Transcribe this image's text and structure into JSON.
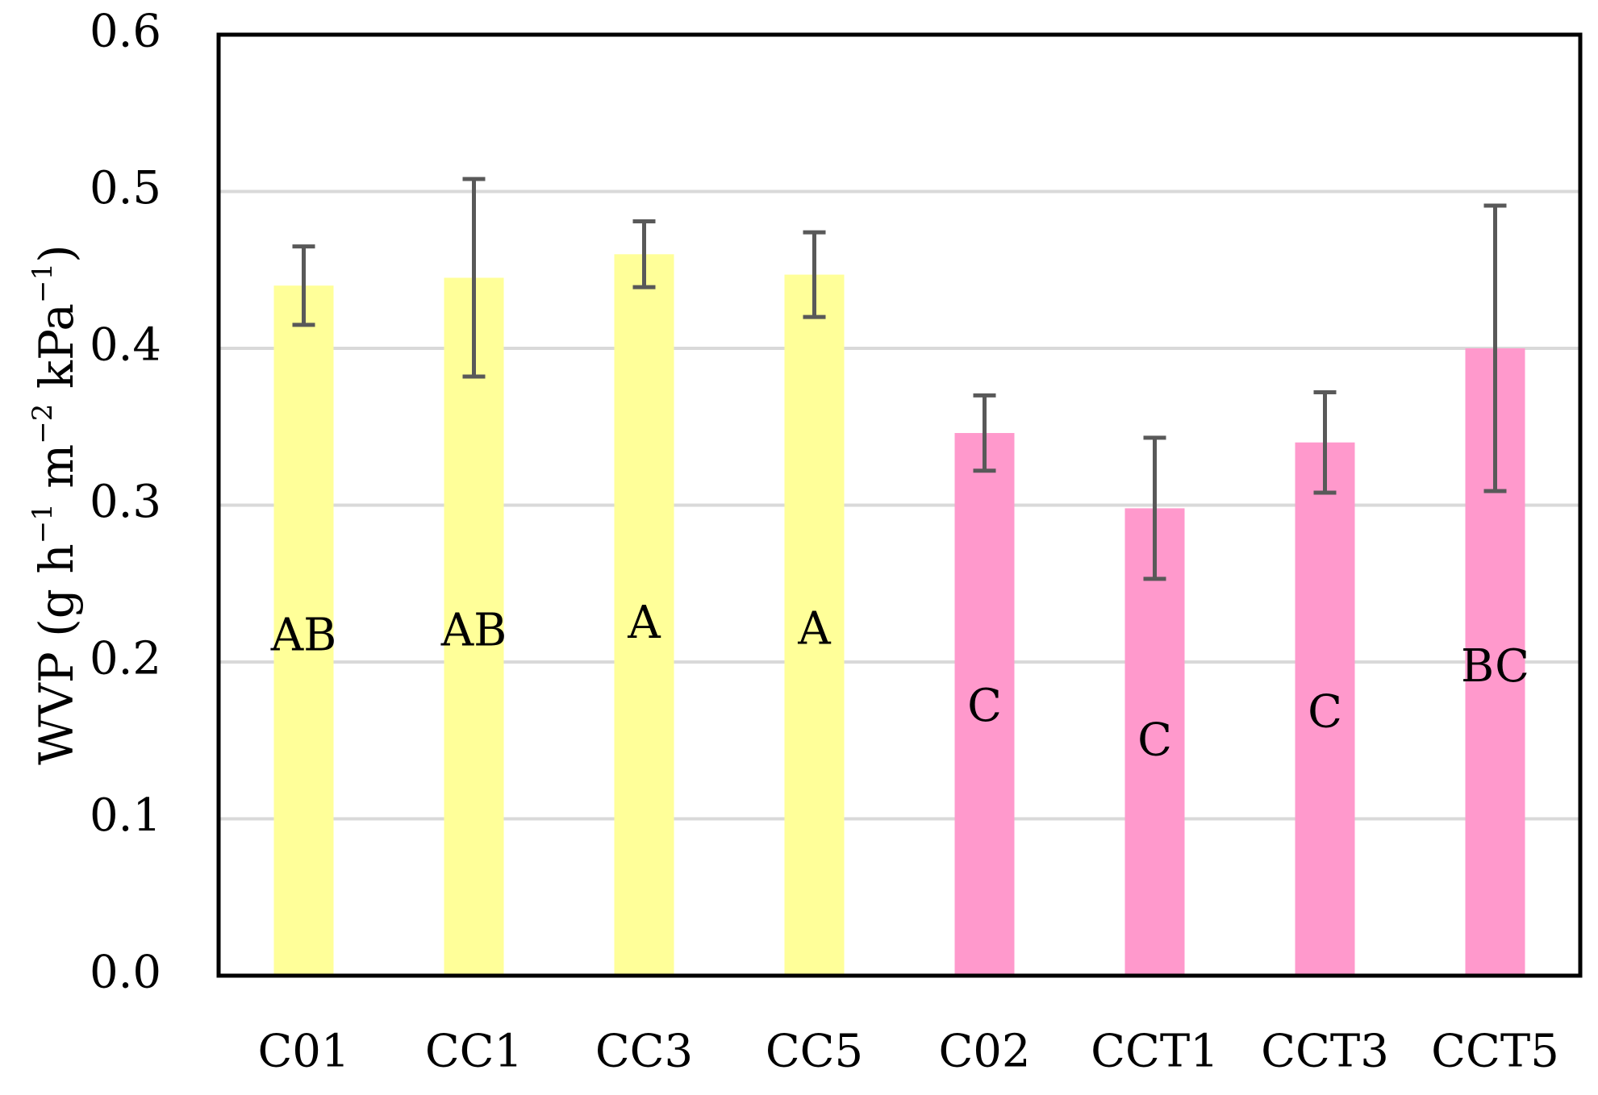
{
  "chart_data": {
    "type": "bar",
    "title": "",
    "xlabel": "",
    "ylabel": {
      "parts": [
        {
          "t": "WVP (g h",
          "sup": false
        },
        {
          "t": "−1",
          "sup": true
        },
        {
          "t": " m",
          "sup": false
        },
        {
          "t": "−2",
          "sup": true
        },
        {
          "t": " kPa",
          "sup": false
        },
        {
          "t": "−1",
          "sup": true
        },
        {
          "t": ")",
          "sup": false
        }
      ]
    },
    "ylim": [
      0,
      0.6
    ],
    "yticks": [
      "0.0",
      "0.1",
      "0.2",
      "0.3",
      "0.4",
      "0.5",
      "0.6"
    ],
    "grid": true,
    "categories": [
      "C01",
      "CC1",
      "CC3",
      "CC5",
      "C02",
      "CCT1",
      "CCT3",
      "CCT5"
    ],
    "values": [
      0.44,
      0.445,
      0.46,
      0.447,
      0.346,
      0.298,
      0.34,
      0.4
    ],
    "errors": [
      0.025,
      0.063,
      0.021,
      0.027,
      0.024,
      0.045,
      0.032,
      0.091
    ],
    "significance": [
      "AB",
      "AB",
      "A",
      "A",
      "C",
      "C",
      "C",
      "BC"
    ],
    "significance_y": [
      0.215,
      0.218,
      0.223,
      0.219,
      0.17,
      0.148,
      0.166,
      0.195
    ],
    "colors": [
      "#ffff99",
      "#ffff99",
      "#ffff99",
      "#ffff99",
      "#ff99cc",
      "#ff99cc",
      "#ff99cc",
      "#ff99cc"
    ],
    "error_color": "#595959",
    "grid_color": "#d9d9d9"
  }
}
